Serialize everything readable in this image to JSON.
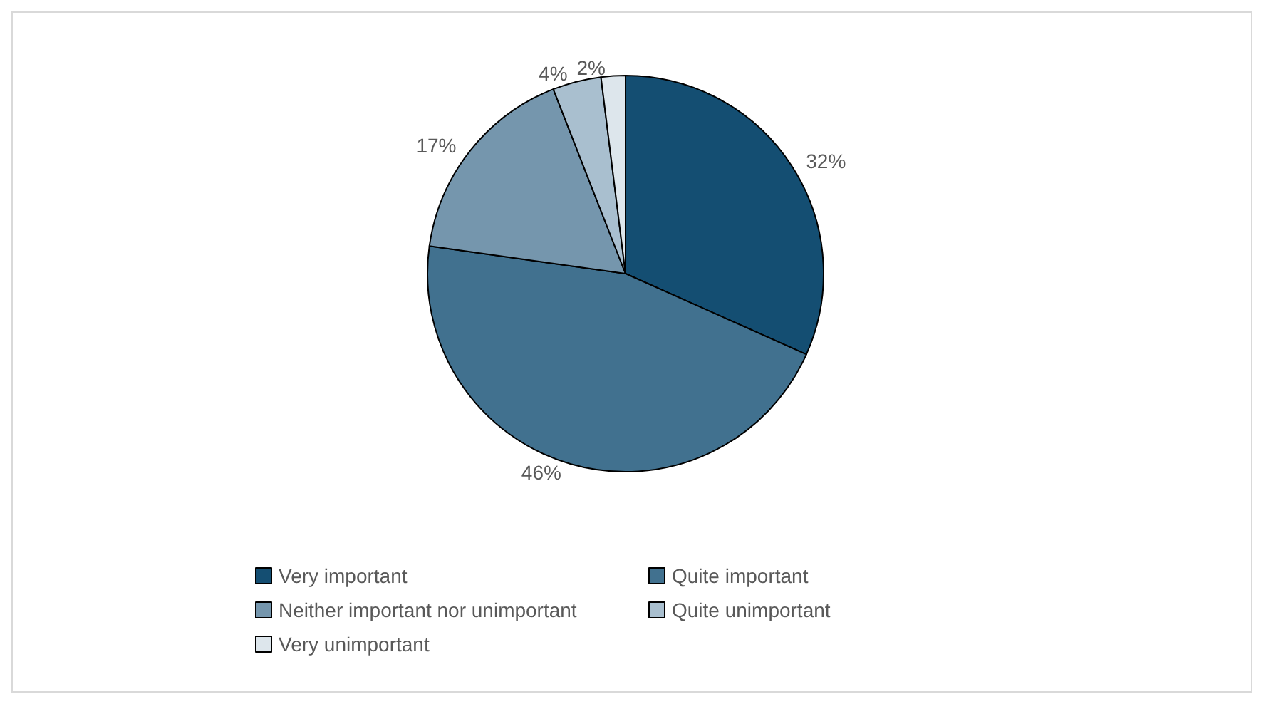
{
  "chart_data": {
    "type": "pie",
    "categories": [
      "Very important",
      "Quite important",
      "Neither important nor unimportant",
      "Quite unimportant",
      "Very unimportant"
    ],
    "values": [
      32,
      46,
      17,
      4,
      2
    ],
    "value_labels": [
      "32%",
      "46%",
      "17%",
      "4%",
      "2%"
    ],
    "colors": [
      "#144e72",
      "#41718f",
      "#7596ad",
      "#a9bfcf",
      "#dde6ec"
    ],
    "legend": "bottom"
  }
}
